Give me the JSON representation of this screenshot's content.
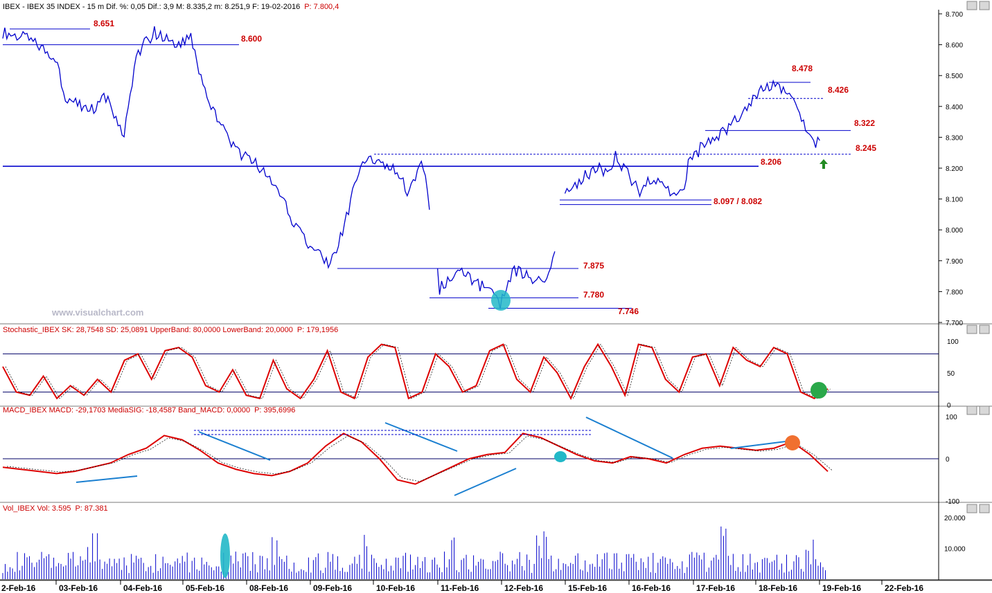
{
  "header": {
    "price": "IBEX - IBEX 35 INDEX - 15 m  Dif. %: 0,05  Dif.: 3,9  M: 8.335,2  m: 8.251,9  F: 19-02-2016",
    "price_p": "P: 7.800,4",
    "stoch": "Stochastic_IBEX SK: 28,7548  SD: 25,0891  UpperBand: 80,0000  LowerBand: 20,0000",
    "stoch_p": "P: 179,1956",
    "macd": "MACD_IBEX MACD: -29,1703  MediaSIG: -18,4587  Band_MACD: 0,0000",
    "macd_p": "P: 395,6996",
    "vol": "Vol_IBEX Vol: 3.595",
    "vol_p": "P: 87.381"
  },
  "watermark": "www.visualchart.com",
  "colors": {
    "price": "#0000cc",
    "level": "#cc0000",
    "trend": "#1a7fd0",
    "stoch": "#dd0000"
  },
  "chart_data": [
    {
      "type": "line",
      "name": "price",
      "ylim": [
        7700,
        8700
      ],
      "yticks": [
        "7.700",
        "7.800",
        "7.900",
        "8.000",
        "8.100",
        "8.200",
        "8.300",
        "8.400",
        "8.500",
        "8.600",
        "8.700"
      ],
      "x": [
        "2-Feb-16",
        "03-Feb-16",
        "04-Feb-16",
        "05-Feb-16",
        "08-Feb-16",
        "09-Feb-16",
        "10-Feb-16",
        "11-Feb-16",
        "12-Feb-16",
        "15-Feb-16",
        "16-Feb-16",
        "17-Feb-16",
        "18-Feb-16",
        "19-Feb-16",
        "22-Feb-16"
      ],
      "path": [
        [
          0,
          8640
        ],
        [
          4,
          8620
        ],
        [
          9,
          8555
        ],
        [
          10,
          8440
        ],
        [
          14,
          8380
        ],
        [
          17,
          8430
        ],
        [
          20,
          8310
        ],
        [
          22,
          8570
        ],
        [
          25,
          8640
        ],
        [
          29,
          8595
        ],
        [
          31,
          8620
        ],
        [
          33,
          8460
        ],
        [
          36,
          8330
        ],
        [
          39,
          8250
        ],
        [
          42,
          8210
        ],
        [
          45,
          8140
        ],
        [
          48,
          8020
        ],
        [
          51,
          7930
        ],
        [
          54,
          7890
        ],
        [
          56,
          7990
        ],
        [
          58,
          8140
        ],
        [
          60,
          8240
        ],
        [
          64,
          8210
        ],
        [
          67,
          8120
        ],
        [
          69,
          8230
        ],
        [
          70,
          8140
        ],
        [
          71,
          7960
        ],
        [
          72,
          7810
        ],
        [
          75,
          7870
        ],
        [
          78,
          7830
        ],
        [
          80,
          7800
        ],
        [
          82,
          7760
        ],
        [
          84,
          7870
        ],
        [
          87,
          7850
        ],
        [
          89,
          7820
        ],
        [
          90,
          7870
        ],
        [
          91,
          7920
        ],
        [
          92,
          8100
        ],
        [
          95,
          8160
        ],
        [
          98,
          8200
        ],
        [
          100,
          8190
        ],
        [
          101,
          8240
        ],
        [
          103,
          8180
        ],
        [
          105,
          8120
        ],
        [
          107,
          8170
        ],
        [
          110,
          8130
        ],
        [
          112,
          8110
        ],
        [
          113,
          8210
        ],
        [
          116,
          8290
        ],
        [
          119,
          8320
        ],
        [
          121,
          8360
        ],
        [
          123,
          8410
        ],
        [
          125,
          8460
        ],
        [
          127,
          8470
        ],
        [
          129,
          8450
        ],
        [
          131,
          8390
        ],
        [
          133,
          8310
        ],
        [
          134,
          8270
        ],
        [
          135,
          8320
        ]
      ],
      "levels": [
        {
          "label": "8.651",
          "value": 8651
        },
        {
          "label": "8.600",
          "value": 8600
        },
        {
          "label": "8.206",
          "value": 8206
        },
        {
          "label": "7.875",
          "value": 7875
        },
        {
          "label": "7.780",
          "value": 7780
        },
        {
          "label": "7.746",
          "value": 7746
        },
        {
          "label": "8.097 / 8.082",
          "value": 8097
        },
        {
          "label": "8.478",
          "value": 8478
        },
        {
          "label": "8.426",
          "value": 8426
        },
        {
          "label": "8.322",
          "value": 8322
        },
        {
          "label": "8.245",
          "value": 8245
        }
      ]
    },
    {
      "type": "line",
      "name": "stochastic",
      "ylim": [
        0,
        100
      ],
      "yticks": [
        "0",
        "50",
        "100"
      ],
      "bands": [
        20,
        80
      ],
      "values": [
        60,
        20,
        15,
        45,
        10,
        30,
        15,
        40,
        20,
        70,
        80,
        40,
        85,
        90,
        75,
        30,
        20,
        55,
        15,
        10,
        70,
        25,
        10,
        40,
        85,
        20,
        10,
        75,
        95,
        90,
        10,
        20,
        80,
        60,
        20,
        30,
        85,
        95,
        40,
        20,
        75,
        50,
        10,
        60,
        95,
        60,
        15,
        95,
        90,
        40,
        20,
        75,
        80,
        30,
        90,
        70,
        60,
        90,
        80,
        20,
        10,
        25
      ]
    },
    {
      "type": "line",
      "name": "macd",
      "ylim": [
        -100,
        100
      ],
      "yticks": [
        "-100",
        "0",
        "100"
      ],
      "values": [
        -20,
        -25,
        -30,
        -35,
        -30,
        -20,
        -10,
        10,
        25,
        55,
        45,
        20,
        -10,
        -25,
        -35,
        -40,
        -30,
        -10,
        30,
        60,
        40,
        0,
        -50,
        -60,
        -40,
        -20,
        0,
        10,
        15,
        60,
        50,
        30,
        10,
        -5,
        -10,
        5,
        0,
        -10,
        10,
        25,
        30,
        25,
        20,
        25,
        40,
        10,
        -30
      ]
    },
    {
      "type": "bar",
      "name": "volume",
      "ylim": [
        0,
        20000
      ],
      "yticks": [
        "10.000",
        "20.000"
      ]
    }
  ]
}
